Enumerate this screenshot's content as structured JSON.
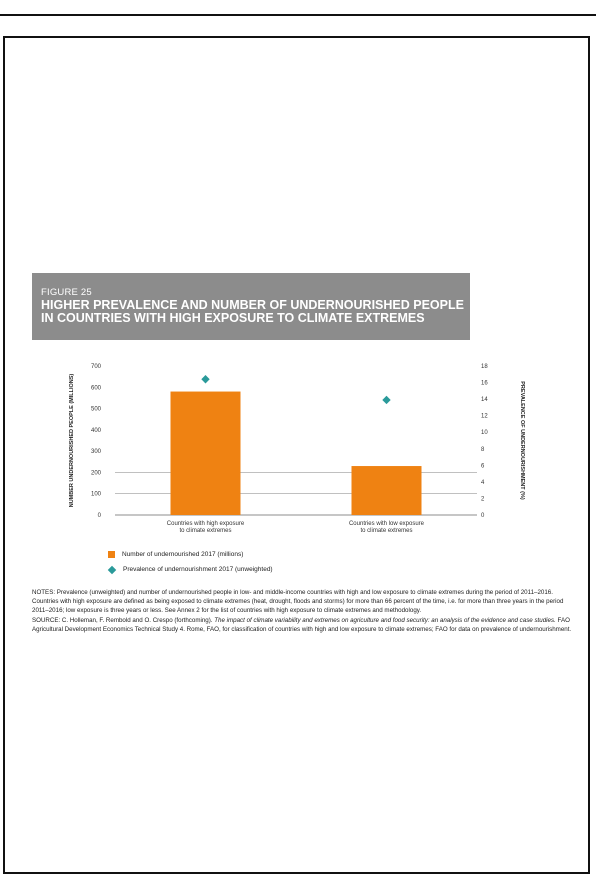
{
  "figure": {
    "label": "FIGURE 25",
    "title": "HIGHER PREVALENCE AND NUMBER OF UNDERNOURISHED PEOPLE IN COUNTRIES WITH HIGH EXPOSURE TO CLIMATE EXTREMES"
  },
  "chart_data": {
    "type": "bar",
    "categories": [
      "Countries with high exposure to climate extremes",
      "Countries with low exposure to climate extremes"
    ],
    "category_lines": [
      [
        "Countries with high exposure",
        "to climate extremes"
      ],
      [
        "Countries with low exposure",
        "to climate extremes"
      ]
    ],
    "series": [
      {
        "name": "Number of undernourished 2017 (millions)",
        "values": [
          580,
          230
        ],
        "axis": "left",
        "kind": "bar",
        "color": "#ef8212"
      },
      {
        "name": "Prevalence of undernourishment 2017 (unweighted)",
        "values": [
          16.4,
          13.9
        ],
        "axis": "right",
        "kind": "marker",
        "color": "#2a9a9a"
      }
    ],
    "ylabel": "NUMBER UNDERNOURISHED PEOPLE (MILLIONS)",
    "y2label": "PREVALENCE OF UNDERNOURISHMENT (%)",
    "ylim": [
      0,
      700
    ],
    "y2lim": [
      0,
      18
    ],
    "yticks": [
      0,
      100,
      200,
      300,
      400,
      500,
      600,
      700
    ],
    "y2ticks": [
      0,
      2,
      4,
      6,
      8,
      10,
      12,
      14,
      16,
      18
    ],
    "grid_values": [
      100,
      200
    ]
  },
  "legend": {
    "bar": "Number of undernourished 2017 (millions)",
    "marker": "Prevalence of undernourishment 2017 (unweighted)"
  },
  "notes": {
    "text1": "NOTES: Prevalence (unweighted) and number of undernourished people in low- and middle-income countries with high and low exposure to climate extremes during the period of 2011–2016. Countries with high exposure are defined as being exposed to climate extremes (heat, drought, floods and storms) for more than 66 percent of the time, i.e. for more than three years in the period 2011–2016; low exposure is three years or less. See Annex 2 for the list of countries with high exposure to climate extremes and methodology.",
    "text2": "SOURCE: C. Holleman, F. Rembold and O. Crespo (forthcoming).",
    "text3": "The impact of climate variability and extremes on agriculture and food security: an analysis of the evidence and case studies.",
    "text4": "FAO Agricultural Development Economics Technical Study 4. Rome, FAO, for classification of countries with high and low exposure to climate extremes; FAO for data on prevalence of undernourishment."
  }
}
